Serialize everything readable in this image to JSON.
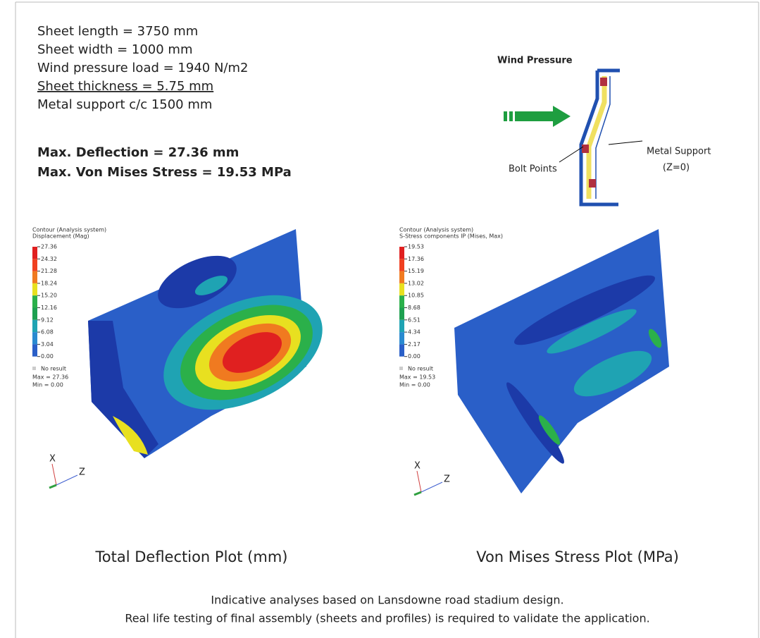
{
  "specs": [
    "Sheet length = 3750 mm",
    "Sheet width = 1000 mm",
    "Wind pressure load = 1940 N/m2",
    "Sheet thickness = 5.75 mm",
    "Metal support c/c 1500 mm"
  ],
  "results": [
    "Max. Deflection = 27.36 mm",
    "Max. Von Mises Stress = 19.53 MPa"
  ],
  "diagram": {
    "title": "Wind Pressure",
    "bolt_label": "Bolt Points",
    "support_label": [
      "Metal Support",
      "(Z=0)"
    ]
  },
  "plots": [
    {
      "header": [
        "Contour (Analysis system)",
        "Displacement (Mag)"
      ],
      "legend": [
        "27.36",
        "24.32",
        "21.28",
        "18.24",
        "15.20",
        "12.16",
        "9.12",
        "6.08",
        "3.04",
        "0.00"
      ],
      "no_result": "No result",
      "max": "Max = 27.36",
      "min": "Min = 0.00",
      "caption": "Total Deflection Plot (mm)"
    },
    {
      "header": [
        "Contour (Analysis system)",
        "S-Stress components IP (Mises, Max)"
      ],
      "legend": [
        "19.53",
        "17.36",
        "15.19",
        "13.02",
        "10.85",
        "8.68",
        "6.51",
        "4.34",
        "2.17",
        "0.00"
      ],
      "no_result": "No result",
      "max": "Max = 19.53",
      "min": "Min = 0.00",
      "caption": "Von Mises Stress Plot (MPa)"
    }
  ],
  "axes": {
    "x": "X",
    "z": "Z"
  },
  "footer": [
    "Indicative analyses based on Lansdowne road stadium design.",
    "Real life testing of final assembly (sheets and profiles) is required to validate the application."
  ]
}
